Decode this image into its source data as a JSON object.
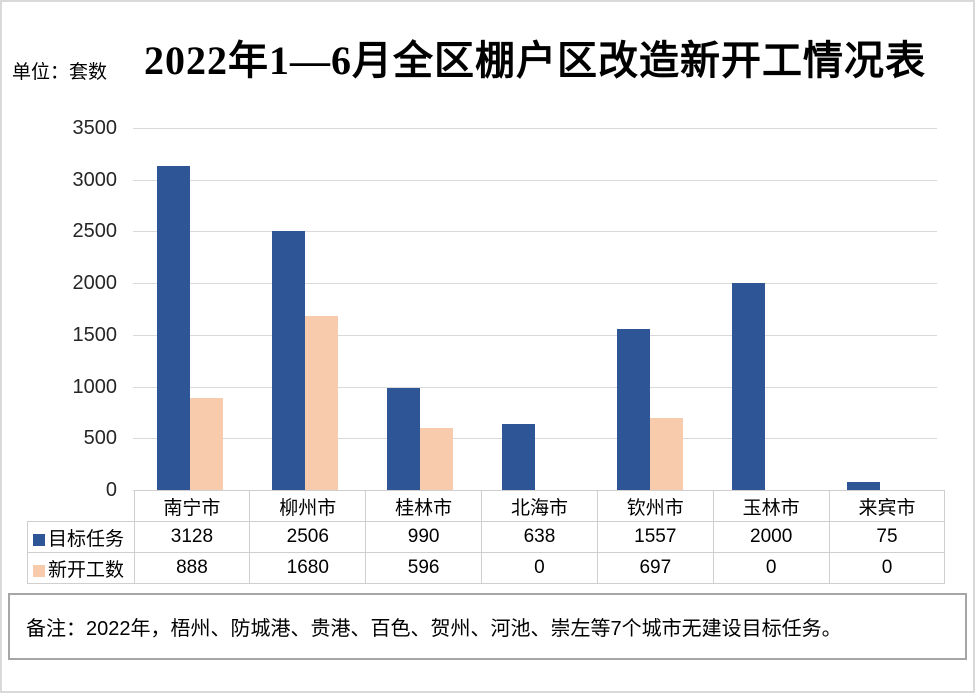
{
  "page": {
    "background": "#FFFFFF",
    "border_color": "#D9D9D9"
  },
  "header": {
    "title": "2022年1—6月全区棚户区改造新开工情况表",
    "unit_label": "单位：套数"
  },
  "chart_data": {
    "type": "bar",
    "title": "2022年1—6月全区棚户区改造新开工情况表",
    "unit_label": "单位：套数",
    "categories": [
      "南宁市",
      "柳州市",
      "桂林市",
      "北海市",
      "钦州市",
      "玉林市",
      "来宾市"
    ],
    "series": [
      {
        "name": "目标任务",
        "color": "#2E5596",
        "values": [
          3128,
          2506,
          990,
          638,
          1557,
          2000,
          75
        ]
      },
      {
        "name": "新开工数",
        "color": "#F8CBAD",
        "values": [
          888,
          1680,
          596,
          0,
          697,
          0,
          0
        ]
      }
    ],
    "ylim": [
      0,
      3500
    ],
    "y_ticks": [
      3500,
      3000,
      2500,
      2000,
      1500,
      1000,
      500,
      0
    ],
    "grid": true,
    "gridline_color": "#D9D9D9",
    "legend_position": "data-table-left",
    "data_table": true
  },
  "note": {
    "text": "备注：2022年，梧州、防城港、贵港、百色、贺州、河池、崇左等7个城市无建设目标任务。"
  },
  "colors": {
    "table_border": "#D0CECE",
    "note_border": "#A6A6A6",
    "axis_text": "#262626"
  }
}
